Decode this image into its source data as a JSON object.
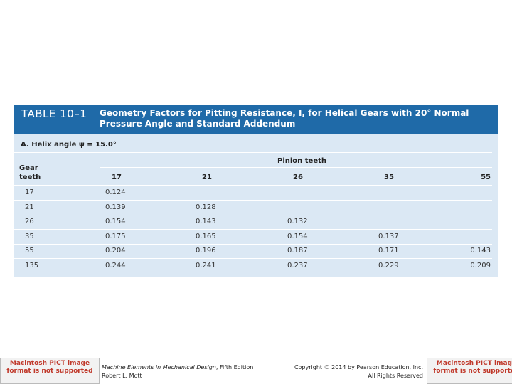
{
  "table": {
    "label": "TABLE 10–1",
    "title": "Geometry Factors for Pitting Resistance, I, for Helical Gears with 20° Normal Pressure Angle and Standard Addendum",
    "section": "A. Helix angle ψ = 15.0°",
    "column_group": "Pinion teeth",
    "row_header": "Gear teeth",
    "columns": [
      "17",
      "21",
      "26",
      "35",
      "55"
    ],
    "rows": [
      [
        "17",
        "0.124"
      ],
      [
        "21",
        "0.139",
        "0.128"
      ],
      [
        "26",
        "0.154",
        "0.143",
        "0.132"
      ],
      [
        "35",
        "0.175",
        "0.165",
        "0.154",
        "0.137"
      ],
      [
        "55",
        "0.204",
        "0.196",
        "0.187",
        "0.171",
        "0.143"
      ],
      [
        "135",
        "0.244",
        "0.241",
        "0.237",
        "0.229",
        "0.209"
      ]
    ]
  },
  "footer": {
    "book": "Machine Elements in Mechanical Design",
    "edition": ", Fifth Edition",
    "author": "Robert L. Mott",
    "copyright": "Copyright © 2014 by Pearson Education, Inc.",
    "rights": "All Rights Reserved",
    "image_error": "Macintosh PICT image format is not supported"
  }
}
